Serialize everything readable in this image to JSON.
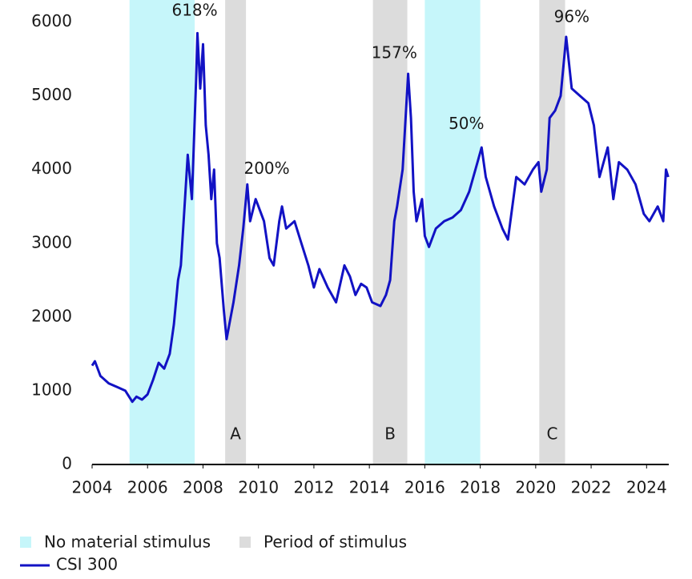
{
  "chart_data": {
    "type": "line",
    "xlim": [
      2004,
      2024.8
    ],
    "ylim": [
      0,
      6300
    ],
    "xticks": [
      2004,
      2006,
      2008,
      2010,
      2012,
      2014,
      2016,
      2018,
      2020,
      2022,
      2024
    ],
    "yticks": [
      0,
      1000,
      2000,
      3000,
      4000,
      5000,
      6000
    ],
    "grid": false,
    "legend": "bottom",
    "shading": [
      {
        "name": "No material stimulus",
        "color": "#c6f6fa",
        "periods": [
          [
            2005.35,
            2007.7
          ],
          [
            2016.0,
            2018.0
          ]
        ]
      },
      {
        "name": "Period of stimulus",
        "color": "#dcdcdc",
        "periods": [
          [
            2008.8,
            2009.55
          ],
          [
            2014.13,
            2015.37
          ],
          [
            2020.13,
            2021.06
          ]
        ],
        "labels": [
          "A",
          "B",
          "C"
        ]
      }
    ],
    "annotations": [
      {
        "text": "618%",
        "x": 2007.7,
        "y": 6150
      },
      {
        "text": "200%",
        "x": 2010.3,
        "y": 4000
      },
      {
        "text": "157%",
        "x": 2014.9,
        "y": 5570
      },
      {
        "text": "50%",
        "x": 2017.5,
        "y": 4610
      },
      {
        "text": "96%",
        "x": 2021.3,
        "y": 6060
      }
    ],
    "series": [
      {
        "name": "CSI 300",
        "color": "#1212c4",
        "x": [
          2004.0,
          2004.1,
          2004.3,
          2004.6,
          2004.9,
          2005.2,
          2005.45,
          2005.6,
          2005.8,
          2006.0,
          2006.2,
          2006.4,
          2006.6,
          2006.8,
          2006.95,
          2007.1,
          2007.2,
          2007.35,
          2007.45,
          2007.6,
          2007.75,
          2007.8,
          2007.9,
          2008.0,
          2008.1,
          2008.2,
          2008.3,
          2008.4,
          2008.5,
          2008.6,
          2008.75,
          2008.85,
          2008.95,
          2009.1,
          2009.3,
          2009.45,
          2009.6,
          2009.7,
          2009.9,
          2010.0,
          2010.2,
          2010.4,
          2010.55,
          2010.75,
          2010.85,
          2011.0,
          2011.3,
          2011.55,
          2011.8,
          2012.0,
          2012.2,
          2012.5,
          2012.8,
          2013.1,
          2013.3,
          2013.5,
          2013.7,
          2013.9,
          2014.1,
          2014.4,
          2014.6,
          2014.75,
          2014.9,
          2015.0,
          2015.2,
          2015.4,
          2015.5,
          2015.6,
          2015.7,
          2015.9,
          2016.0,
          2016.15,
          2016.4,
          2016.7,
          2017.0,
          2017.3,
          2017.6,
          2017.9,
          2018.05,
          2018.2,
          2018.5,
          2018.8,
          2019.0,
          2019.3,
          2019.6,
          2019.9,
          2020.1,
          2020.2,
          2020.4,
          2020.5,
          2020.7,
          2020.9,
          2021.1,
          2021.3,
          2021.6,
          2021.9,
          2022.1,
          2022.3,
          2022.6,
          2022.8,
          2023.0,
          2023.3,
          2023.6,
          2023.9,
          2024.1,
          2024.4,
          2024.6,
          2024.7,
          2024.78
        ],
        "values": [
          1340,
          1400,
          1200,
          1100,
          1050,
          1000,
          850,
          920,
          880,
          950,
          1150,
          1380,
          1300,
          1500,
          1900,
          2500,
          2700,
          3600,
          4200,
          3600,
          5200,
          5850,
          5100,
          5700,
          4600,
          4200,
          3600,
          4000,
          3000,
          2800,
          2100,
          1700,
          1900,
          2200,
          2700,
          3200,
          3800,
          3300,
          3600,
          3500,
          3300,
          2800,
          2700,
          3300,
          3500,
          3200,
          3300,
          3000,
          2700,
          2400,
          2650,
          2400,
          2200,
          2700,
          2550,
          2300,
          2450,
          2400,
          2200,
          2150,
          2300,
          2500,
          3300,
          3500,
          4000,
          5300,
          4700,
          3700,
          3300,
          3600,
          3100,
          2950,
          3200,
          3300,
          3350,
          3450,
          3700,
          4100,
          4300,
          3900,
          3500,
          3200,
          3050,
          3900,
          3800,
          4000,
          4100,
          3700,
          4000,
          4700,
          4800,
          5000,
          5800,
          5100,
          5000,
          4900,
          4600,
          3900,
          4300,
          3600,
          4100,
          4000,
          3800,
          3400,
          3300,
          3500,
          3300,
          4000,
          3900
        ]
      }
    ]
  }
}
